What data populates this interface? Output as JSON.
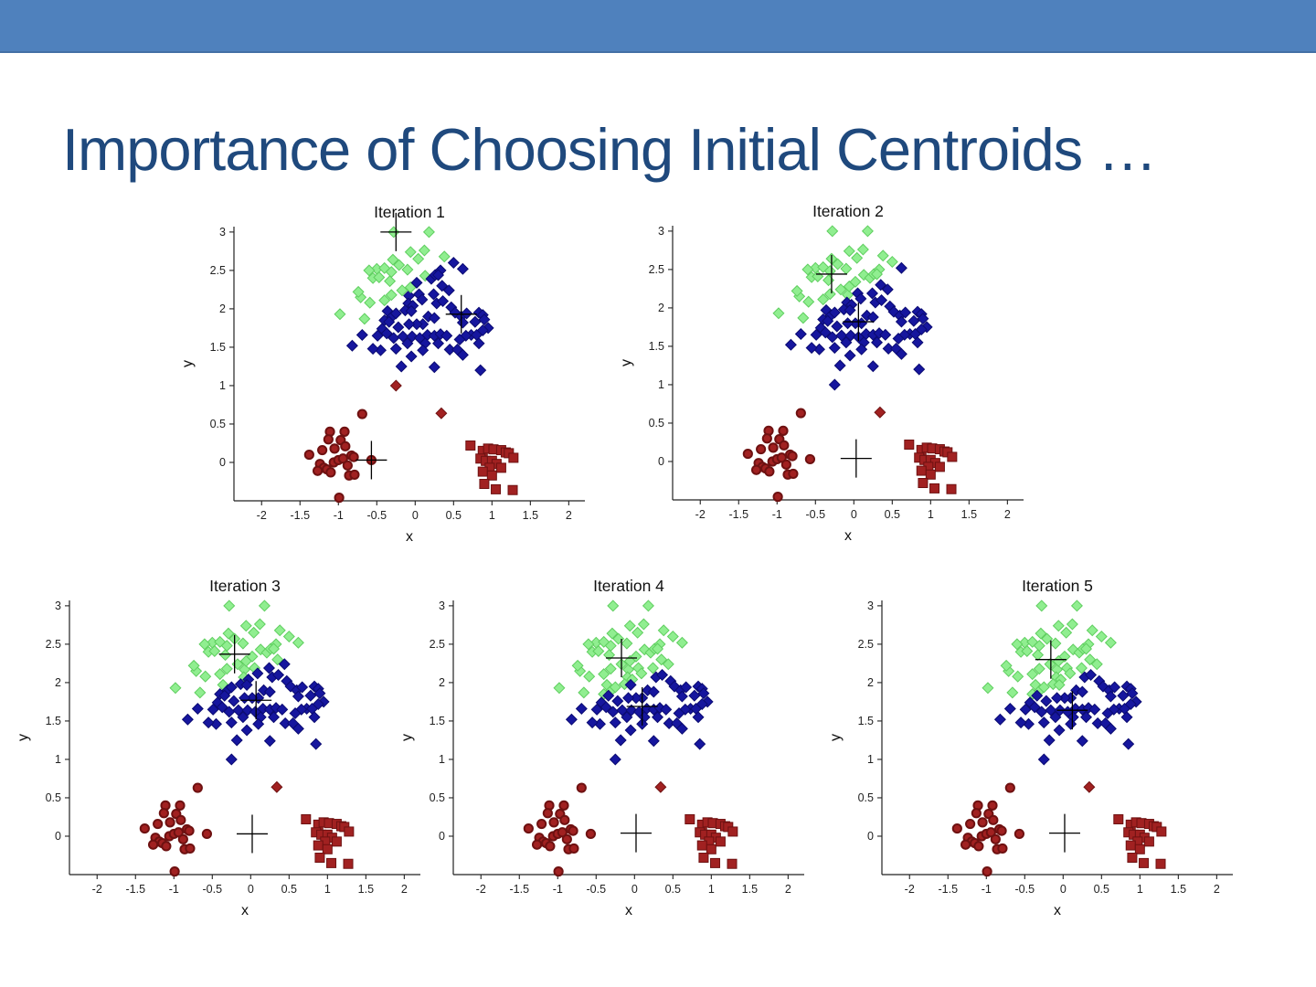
{
  "slide": {
    "title": "Importance of Choosing Initial Centroids …",
    "header_color": "#4F81BD",
    "header_edge_color": "#436FA5",
    "title_color": "#1F497D",
    "background": "#FFFFFF"
  },
  "chart_data": {
    "type": "scatter",
    "description": "K-means clustering on one dataset; five panels show iterations 1-5. Point color = nearest centroid (cross markers). Marker shape encodes source cluster: diamonds = upper points, circles = lower-left, squares = lower-right.",
    "xlabel": "x",
    "ylabel": "y",
    "xlim": [
      -2.36,
      2.21
    ],
    "ylim": [
      -0.5,
      3.07
    ],
    "xticks": [
      -2,
      -1.5,
      -1,
      -0.5,
      0,
      0.5,
      1,
      1.5,
      2
    ],
    "yticks": [
      0,
      0.5,
      1,
      1.5,
      2,
      2.5,
      3
    ],
    "grid": false,
    "legend": "none",
    "cluster_colors": [
      "#90EE90",
      "#16169E",
      "#A12121"
    ],
    "cluster_edge_colors": [
      "#5FCE5F",
      "#0B0B72",
      "#6E1111"
    ],
    "centroid_color": "#000000",
    "iterations": [
      {
        "title": "Iteration 1",
        "centroids": [
          [
            -0.25,
            3.0
          ],
          [
            0.6,
            1.93
          ],
          [
            -0.57,
            0.03
          ]
        ]
      },
      {
        "title": "Iteration 2",
        "centroids": [
          [
            -0.29,
            2.44
          ],
          [
            0.06,
            1.82
          ],
          [
            0.03,
            0.04
          ]
        ]
      },
      {
        "title": "Iteration 3",
        "centroids": [
          [
            -0.21,
            2.37
          ],
          [
            0.07,
            1.77
          ],
          [
            0.02,
            0.03
          ]
        ]
      },
      {
        "title": "Iteration 4",
        "centroids": [
          [
            -0.17,
            2.32
          ],
          [
            0.1,
            1.69
          ],
          [
            0.02,
            0.04
          ]
        ]
      },
      {
        "title": "Iteration 5",
        "centroids": [
          [
            -0.16,
            2.3
          ],
          [
            0.12,
            1.64
          ],
          [
            0.02,
            0.04
          ]
        ]
      }
    ],
    "points": [
      [
        -0.28,
        3.0,
        "d"
      ],
      [
        0.18,
        3.0,
        "d"
      ],
      [
        0.12,
        2.76,
        "d"
      ],
      [
        -0.06,
        2.74,
        "d"
      ],
      [
        0.38,
        2.68,
        "d"
      ],
      [
        -0.29,
        2.64,
        "d"
      ],
      [
        0.5,
        2.6,
        "d"
      ],
      [
        0.04,
        2.65,
        "d"
      ],
      [
        -0.21,
        2.57,
        "d"
      ],
      [
        -0.5,
        2.52,
        "d"
      ],
      [
        -0.4,
        2.53,
        "d"
      ],
      [
        -0.31,
        2.48,
        "d"
      ],
      [
        -0.1,
        2.51,
        "d"
      ],
      [
        0.13,
        2.43,
        "d"
      ],
      [
        0.21,
        2.39,
        "d"
      ],
      [
        0.26,
        2.44,
        "d"
      ],
      [
        -0.6,
        2.5,
        "d"
      ],
      [
        -0.55,
        2.4,
        "d"
      ],
      [
        -0.47,
        2.41,
        "d"
      ],
      [
        -0.33,
        2.36,
        "d"
      ],
      [
        0.33,
        2.5,
        "d"
      ],
      [
        -0.71,
        2.15,
        "d"
      ],
      [
        -0.59,
        2.08,
        "d"
      ],
      [
        -0.4,
        2.11,
        "d"
      ],
      [
        -0.31,
        2.18,
        "d"
      ],
      [
        -0.08,
        2.17,
        "d"
      ],
      [
        0.05,
        2.19,
        "d"
      ],
      [
        0.24,
        2.19,
        "d"
      ],
      [
        -0.36,
        1.97,
        "d"
      ],
      [
        -0.3,
        1.9,
        "d"
      ],
      [
        -0.25,
        1.94,
        "d"
      ],
      [
        -0.09,
        2.07,
        "d"
      ],
      [
        -0.03,
        2.04,
        "d"
      ],
      [
        -0.98,
        1.93,
        "d"
      ],
      [
        -0.66,
        1.87,
        "d"
      ],
      [
        -0.4,
        1.85,
        "d"
      ],
      [
        -0.34,
        1.83,
        "d"
      ],
      [
        -0.06,
        2.28,
        "d"
      ],
      [
        0.02,
        2.34,
        "d"
      ],
      [
        -0.17,
        2.24,
        "d"
      ],
      [
        -0.74,
        2.22,
        "d"
      ],
      [
        0.09,
        2.12,
        "d"
      ],
      [
        -0.13,
        1.98,
        "d"
      ],
      [
        -0.05,
        1.97,
        "d"
      ],
      [
        0.3,
        2.44,
        "d"
      ],
      [
        0.62,
        2.52,
        "d"
      ],
      [
        0.35,
        2.3,
        "d"
      ],
      [
        0.44,
        2.24,
        "d"
      ],
      [
        0.28,
        2.07,
        "d"
      ],
      [
        0.36,
        2.1,
        "d"
      ],
      [
        0.47,
        2.02,
        "d"
      ],
      [
        0.52,
        1.95,
        "d"
      ],
      [
        0.6,
        1.9,
        "d"
      ],
      [
        0.67,
        1.94,
        "d"
      ],
      [
        0.83,
        1.95,
        "d"
      ],
      [
        0.88,
        1.92,
        "d"
      ],
      [
        0.62,
        1.82,
        "d"
      ],
      [
        0.78,
        1.83,
        "d"
      ],
      [
        0.9,
        1.86,
        "d"
      ],
      [
        0.95,
        1.75,
        "d"
      ],
      [
        0.88,
        1.72,
        "d"
      ],
      [
        0.73,
        1.66,
        "d"
      ],
      [
        0.8,
        1.66,
        "d"
      ],
      [
        0.66,
        1.65,
        "d"
      ],
      [
        0.58,
        1.6,
        "d"
      ],
      [
        0.83,
        1.55,
        "d"
      ],
      [
        0.17,
        1.9,
        "d"
      ],
      [
        0.25,
        1.88,
        "d"
      ],
      [
        0.1,
        1.8,
        "d"
      ],
      [
        0.02,
        1.8,
        "d"
      ],
      [
        -0.08,
        1.8,
        "d"
      ],
      [
        -0.22,
        1.76,
        "d"
      ],
      [
        -0.43,
        1.74,
        "d"
      ],
      [
        -0.37,
        1.68,
        "d"
      ],
      [
        -0.69,
        1.66,
        "d"
      ],
      [
        -0.49,
        1.65,
        "d"
      ],
      [
        -0.28,
        1.62,
        "d"
      ],
      [
        -0.16,
        1.64,
        "d"
      ],
      [
        -0.04,
        1.64,
        "d"
      ],
      [
        0.06,
        1.62,
        "d"
      ],
      [
        0.16,
        1.66,
        "d"
      ],
      [
        0.25,
        1.65,
        "d"
      ],
      [
        0.33,
        1.67,
        "d"
      ],
      [
        0.41,
        1.65,
        "d"
      ],
      [
        0.3,
        1.55,
        "d"
      ],
      [
        0.13,
        1.55,
        "d"
      ],
      [
        -0.1,
        1.55,
        "d"
      ],
      [
        -0.25,
        1.48,
        "d"
      ],
      [
        -0.45,
        1.46,
        "d"
      ],
      [
        -0.55,
        1.48,
        "d"
      ],
      [
        -0.82,
        1.52,
        "d"
      ],
      [
        0.45,
        1.47,
        "d"
      ],
      [
        0.55,
        1.47,
        "d"
      ],
      [
        0.1,
        1.46,
        "d"
      ],
      [
        -0.05,
        1.38,
        "d"
      ],
      [
        -0.18,
        1.25,
        "d"
      ],
      [
        0.25,
        1.24,
        "d"
      ],
      [
        0.85,
        1.2,
        "d"
      ],
      [
        0.62,
        1.4,
        "d"
      ],
      [
        -0.25,
        1.0,
        "d"
      ],
      [
        0.34,
        0.64,
        "d"
      ],
      [
        -0.69,
        0.63,
        "c"
      ],
      [
        -1.11,
        0.4,
        "c"
      ],
      [
        -0.92,
        0.4,
        "c"
      ],
      [
        -1.13,
        0.3,
        "c"
      ],
      [
        -0.97,
        0.29,
        "c"
      ],
      [
        -1.38,
        0.1,
        "c"
      ],
      [
        -1.24,
        -0.02,
        "c"
      ],
      [
        -1.19,
        -0.07,
        "c"
      ],
      [
        -1.27,
        -0.11,
        "c"
      ],
      [
        -1.15,
        -0.09,
        "c"
      ],
      [
        -1.06,
        0.0,
        "c"
      ],
      [
        -1.0,
        0.03,
        "c"
      ],
      [
        -0.94,
        0.05,
        "c"
      ],
      [
        -0.88,
        -0.04,
        "c"
      ],
      [
        -0.83,
        0.09,
        "c"
      ],
      [
        -0.8,
        0.07,
        "c"
      ],
      [
        -0.86,
        -0.17,
        "c"
      ],
      [
        -0.79,
        -0.16,
        "c"
      ],
      [
        -0.57,
        0.03,
        "c"
      ],
      [
        -0.99,
        -0.46,
        "c"
      ],
      [
        -1.21,
        0.16,
        "c"
      ],
      [
        -0.91,
        0.21,
        "c"
      ],
      [
        -1.05,
        0.18,
        "c"
      ],
      [
        -1.1,
        -0.13,
        "c"
      ],
      [
        0.72,
        0.22,
        "s"
      ],
      [
        0.88,
        0.15,
        "s"
      ],
      [
        0.95,
        0.18,
        "s"
      ],
      [
        1.02,
        0.17,
        "s"
      ],
      [
        1.12,
        0.16,
        "s"
      ],
      [
        1.18,
        0.13,
        "s"
      ],
      [
        1.22,
        0.12,
        "s"
      ],
      [
        1.28,
        0.06,
        "s"
      ],
      [
        0.85,
        0.05,
        "s"
      ],
      [
        0.92,
        0.02,
        "s"
      ],
      [
        1.0,
        0.02,
        "s"
      ],
      [
        1.06,
        -0.02,
        "s"
      ],
      [
        0.97,
        -0.07,
        "s"
      ],
      [
        1.12,
        -0.07,
        "s"
      ],
      [
        0.88,
        -0.12,
        "s"
      ],
      [
        1.0,
        -0.17,
        "s"
      ],
      [
        0.9,
        -0.28,
        "s"
      ],
      [
        1.05,
        -0.35,
        "s"
      ],
      [
        1.27,
        -0.36,
        "s"
      ]
    ]
  }
}
